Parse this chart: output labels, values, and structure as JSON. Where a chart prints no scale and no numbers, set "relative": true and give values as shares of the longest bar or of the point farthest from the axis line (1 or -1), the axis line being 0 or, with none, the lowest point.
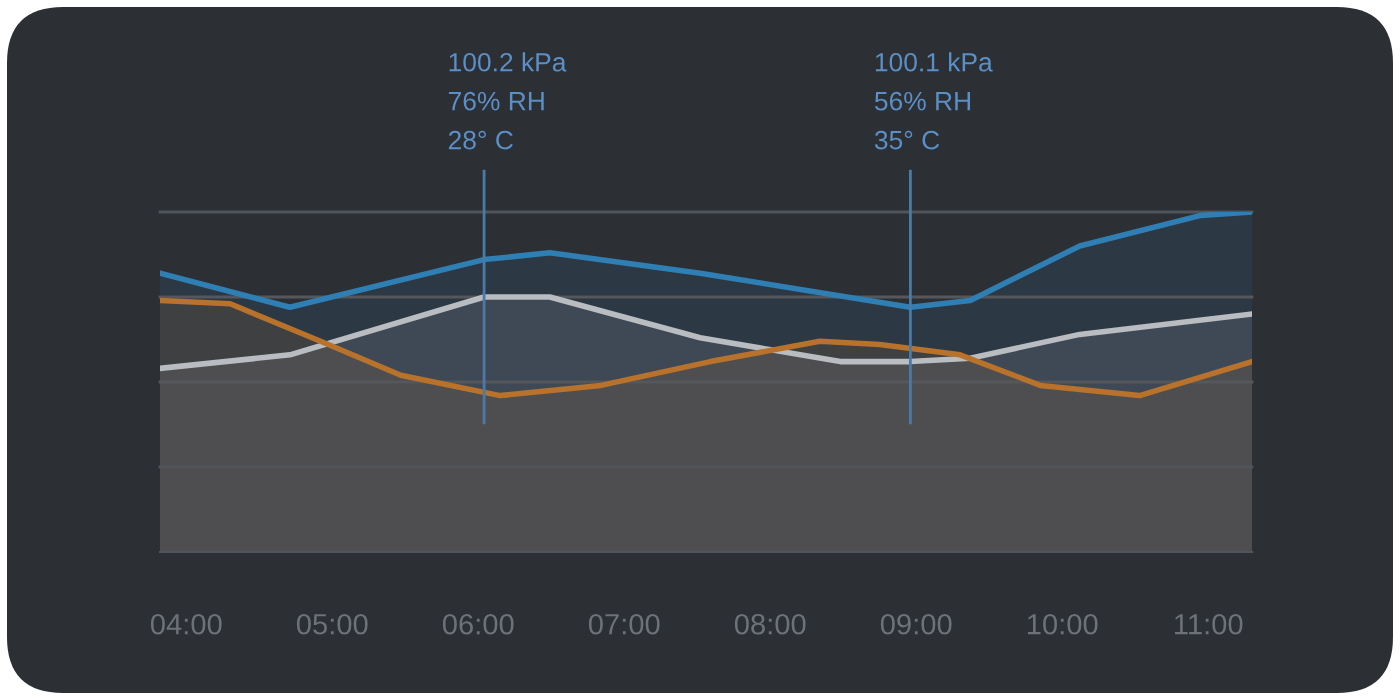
{
  "chart_data": {
    "type": "area",
    "relative": true,
    "xlim": [
      3.82,
      11.3
    ],
    "xticks": [
      {
        "value": 4,
        "label": "04:00"
      },
      {
        "value": 5,
        "label": "05:00"
      },
      {
        "value": 6,
        "label": "06:00"
      },
      {
        "value": 7,
        "label": "07:00"
      },
      {
        "value": 8,
        "label": "08:00"
      },
      {
        "value": 9,
        "label": "09:00"
      },
      {
        "value": 10,
        "label": "10:00"
      },
      {
        "value": 11,
        "label": "11:00"
      }
    ],
    "series": [
      {
        "color": "#2f7fb5",
        "x": [
          3.82,
          4.71,
          6.04,
          6.49,
          7.52,
          8.96,
          9.37,
          10.12,
          10.95,
          11.3
        ],
        "values": [
          0.82,
          0.72,
          0.86,
          0.88,
          0.82,
          0.72,
          0.74,
          0.9,
          0.99,
          1.0
        ]
      },
      {
        "color": "#b9bcc0",
        "x": [
          3.82,
          4.71,
          6.04,
          6.49,
          7.52,
          8.48,
          8.96,
          9.37,
          10.12,
          11.3
        ],
        "values": [
          0.54,
          0.58,
          0.75,
          0.75,
          0.63,
          0.56,
          0.56,
          0.57,
          0.64,
          0.7
        ]
      },
      {
        "color": "#b8722c",
        "x": [
          3.82,
          4.3,
          4.92,
          5.47,
          6.15,
          6.84,
          7.59,
          8.34,
          8.75,
          9.3,
          9.85,
          10.53,
          11.3
        ],
        "values": [
          0.74,
          0.73,
          0.62,
          0.52,
          0.46,
          0.49,
          0.56,
          0.62,
          0.61,
          0.58,
          0.49,
          0.46,
          0.56
        ]
      }
    ],
    "ref_lines": [
      {
        "axis": "x",
        "value": 6.04,
        "label": "100.2 kPa\n76% RH\n28° C",
        "color": "#4a7ba8"
      },
      {
        "axis": "x",
        "value": 8.96,
        "label": "100.1 kPa\n56% RH\n35° C",
        "color": "#4a7ba8"
      },
      {
        "axis": "y",
        "value": 0.25,
        "color": "#50555b"
      },
      {
        "axis": "y",
        "value": 0.5,
        "color": "#55575a"
      },
      {
        "axis": "y",
        "value": 0.75,
        "color": "#55575a"
      },
      {
        "axis": "y",
        "value": 1.0,
        "color": "#50555b"
      }
    ],
    "grid": false,
    "marker": "none",
    "line_style": "solid"
  }
}
